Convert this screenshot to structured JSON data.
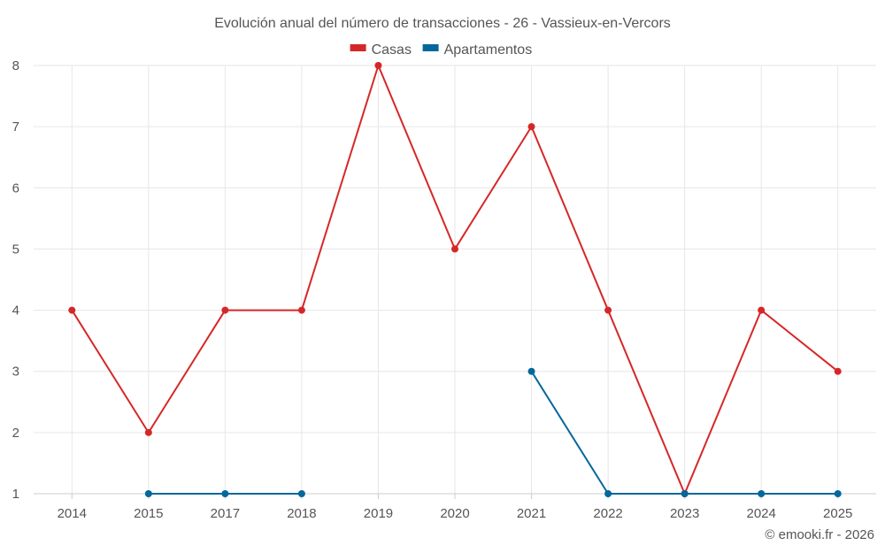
{
  "chart_data": {
    "type": "line",
    "title": "Evolución anual del número de transacciones - 26 - Vassieux-en-Vercors",
    "categories": [
      "2014",
      "2015",
      "2017",
      "2018",
      "2019",
      "2020",
      "2021",
      "2022",
      "2023",
      "2024",
      "2025"
    ],
    "ylim": [
      1,
      8
    ],
    "yticks": [
      1,
      2,
      3,
      4,
      5,
      6,
      7,
      8
    ],
    "grid": true,
    "legend_position": "top-center",
    "series": [
      {
        "name": "Casas",
        "color": "#d62728",
        "values": [
          4,
          2,
          4,
          4,
          8,
          5,
          7,
          4,
          1,
          4,
          3
        ]
      },
      {
        "name": "Apartamentos",
        "color": "#04679c",
        "values": [
          null,
          1,
          1,
          1,
          null,
          null,
          3,
          1,
          1,
          1,
          1
        ]
      }
    ]
  },
  "credit": "© emooki.fr - 2026"
}
